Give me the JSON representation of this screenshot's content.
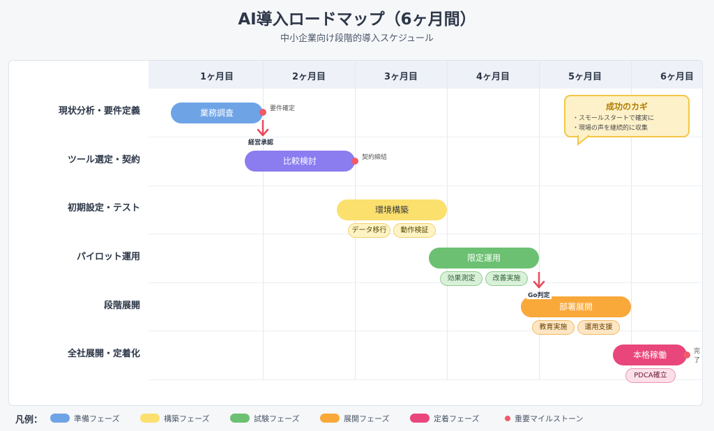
{
  "title": "AI導入ロードマップ（6ヶ月間）",
  "subtitle": "中小企業向け段階的導入スケジュール",
  "months": [
    "1ヶ月目",
    "2ヶ月目",
    "3ヶ月目",
    "4ヶ月目",
    "5ヶ月目",
    "6ヶ月目"
  ],
  "phases": [
    {
      "label": "現状分析・要件定義",
      "task": "業務調査",
      "color": "#6ea3e6",
      "subtasks": []
    },
    {
      "label": "ツール選定・契約",
      "task": "比較検討",
      "color": "#8b7cf0",
      "subtasks": []
    },
    {
      "label": "初期設定・テスト",
      "task": "環境構築",
      "color": "#fbe06e",
      "subtasks": [
        "データ移行",
        "動作検証"
      ]
    },
    {
      "label": "パイロット運用",
      "task": "限定運用",
      "color": "#6cc072",
      "subtasks": [
        "効果測定",
        "改善実施"
      ]
    },
    {
      "label": "段階展開",
      "task": "部署展開",
      "color": "#f9a83a",
      "subtasks": [
        "教育実施",
        "運用支援"
      ]
    },
    {
      "label": "全社展開・定着化",
      "task": "本格稼働",
      "color": "#e9467b",
      "subtasks": [
        "PDCA確立"
      ]
    }
  ],
  "milestones": {
    "m1": "要件確定",
    "m2": "契約締結",
    "m3": "完了",
    "approval": "経営承認",
    "go": "Go判定"
  },
  "callout": {
    "title": "成功のカギ",
    "items": [
      "・スモールスタートで確実に",
      "・現場の声を継続的に収集"
    ]
  },
  "legend": {
    "title": "凡例：",
    "items": [
      {
        "label": "準備フェーズ",
        "color": "#6ea3e6"
      },
      {
        "label": "構築フェーズ",
        "color": "#fbe06e"
      },
      {
        "label": "試験フェーズ",
        "color": "#6cc072"
      },
      {
        "label": "展開フェーズ",
        "color": "#f9a83a"
      },
      {
        "label": "定着フェーズ",
        "color": "#e9467b"
      }
    ],
    "milestone": "重要マイルストーン"
  }
}
